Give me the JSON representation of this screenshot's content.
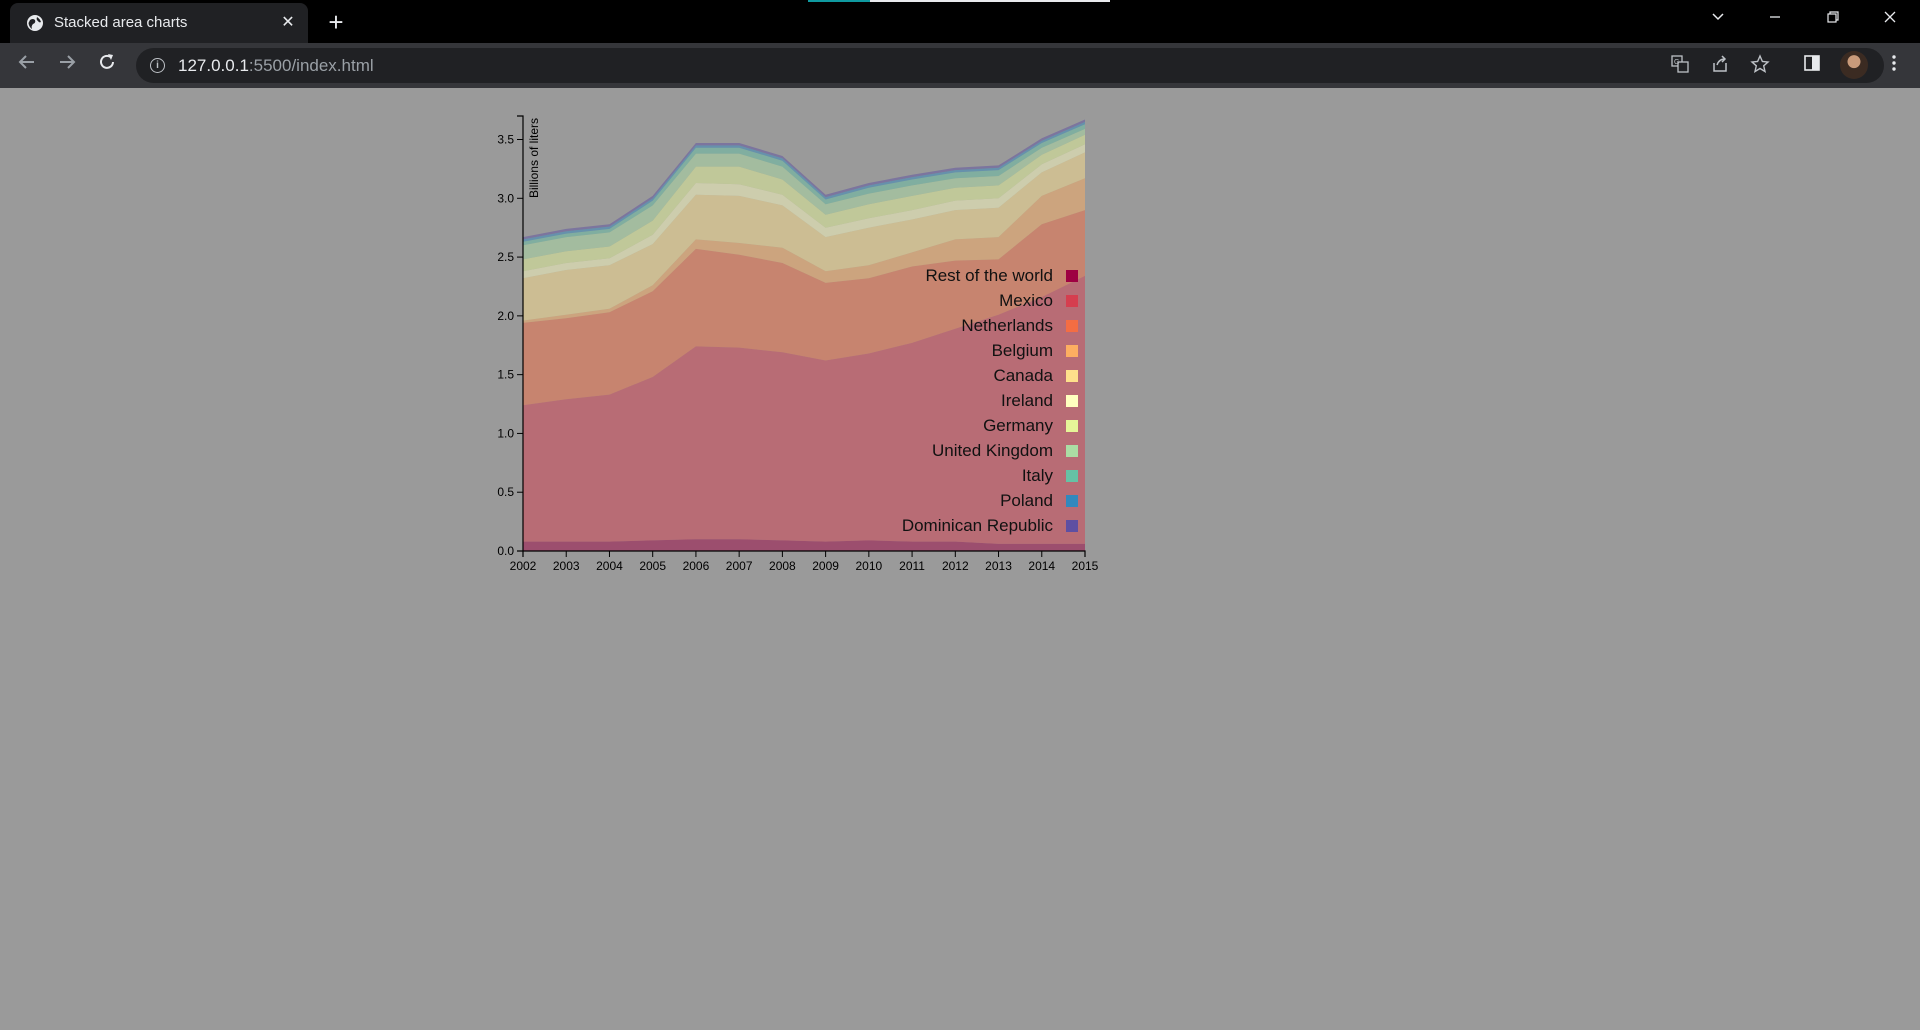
{
  "browser": {
    "tab_title": "Stacked area charts",
    "tab_close": "✕",
    "new_tab": "+",
    "url_host": "127.0.0.1",
    "url_path": ":5500/index.html",
    "icons": {
      "favicon": "globe-icon",
      "back": "back-arrow-icon",
      "forward": "forward-arrow-icon",
      "reload": "reload-icon",
      "info": "info-icon",
      "translate": "translate-icon",
      "share": "share-icon",
      "bookmark": "star-icon",
      "sidepanel": "side-panel-icon",
      "profile": "avatar",
      "menu": "kebab-menu-icon"
    }
  },
  "chart_data": {
    "type": "area",
    "stacked": true,
    "ylabel": "Billions of liters",
    "xlabel": "",
    "ylim": [
      0,
      3.7
    ],
    "y_ticks": [
      0.0,
      0.5,
      1.0,
      1.5,
      2.0,
      2.5,
      3.0,
      3.5
    ],
    "x": [
      2002,
      2003,
      2004,
      2005,
      2006,
      2007,
      2008,
      2009,
      2010,
      2011,
      2012,
      2013,
      2014,
      2015
    ],
    "legend_position": "inside-right",
    "fill_opacity": 0.5,
    "series": [
      {
        "name": "Rest of the world",
        "color": "#9e0142",
        "values": [
          0.08,
          0.08,
          0.08,
          0.09,
          0.1,
          0.1,
          0.09,
          0.08,
          0.09,
          0.08,
          0.08,
          0.06,
          0.06,
          0.06
        ]
      },
      {
        "name": "Mexico",
        "color": "#d53e4f",
        "values": [
          1.16,
          1.21,
          1.25,
          1.39,
          1.64,
          1.63,
          1.6,
          1.54,
          1.59,
          1.69,
          1.81,
          1.95,
          2.1,
          2.28
        ]
      },
      {
        "name": "Netherlands",
        "color": "#f46d43",
        "values": [
          0.7,
          0.69,
          0.7,
          0.73,
          0.83,
          0.79,
          0.76,
          0.66,
          0.64,
          0.65,
          0.58,
          0.47,
          0.62,
          0.56
        ]
      },
      {
        "name": "Belgium",
        "color": "#fdae61",
        "values": [
          0.02,
          0.03,
          0.03,
          0.05,
          0.08,
          0.1,
          0.13,
          0.1,
          0.11,
          0.12,
          0.18,
          0.19,
          0.24,
          0.27
        ]
      },
      {
        "name": "Canada",
        "color": "#fee08b",
        "values": [
          0.36,
          0.38,
          0.37,
          0.35,
          0.38,
          0.4,
          0.36,
          0.29,
          0.32,
          0.28,
          0.25,
          0.25,
          0.2,
          0.22
        ]
      },
      {
        "name": "Ireland",
        "color": "#ffffbf",
        "values": [
          0.06,
          0.06,
          0.06,
          0.08,
          0.1,
          0.1,
          0.09,
          0.08,
          0.08,
          0.08,
          0.08,
          0.08,
          0.07,
          0.07
        ]
      },
      {
        "name": "Germany",
        "color": "#e6f598",
        "values": [
          0.1,
          0.1,
          0.1,
          0.12,
          0.14,
          0.15,
          0.13,
          0.11,
          0.12,
          0.12,
          0.11,
          0.11,
          0.08,
          0.08
        ]
      },
      {
        "name": "United Kingdom",
        "color": "#abdda4",
        "values": [
          0.12,
          0.12,
          0.12,
          0.13,
          0.11,
          0.11,
          0.11,
          0.09,
          0.09,
          0.09,
          0.08,
          0.08,
          0.06,
          0.05
        ]
      },
      {
        "name": "Italy",
        "color": "#66c2a5",
        "values": [
          0.03,
          0.03,
          0.03,
          0.04,
          0.05,
          0.05,
          0.05,
          0.04,
          0.05,
          0.05,
          0.05,
          0.05,
          0.04,
          0.04
        ]
      },
      {
        "name": "Poland",
        "color": "#3288bd",
        "values": [
          0.02,
          0.02,
          0.02,
          0.02,
          0.02,
          0.02,
          0.02,
          0.02,
          0.02,
          0.02,
          0.02,
          0.02,
          0.02,
          0.02
        ]
      },
      {
        "name": "Dominican Republic",
        "color": "#5e4fa2",
        "values": [
          0.02,
          0.02,
          0.02,
          0.02,
          0.02,
          0.02,
          0.02,
          0.02,
          0.02,
          0.02,
          0.02,
          0.02,
          0.02,
          0.02
        ]
      }
    ]
  }
}
